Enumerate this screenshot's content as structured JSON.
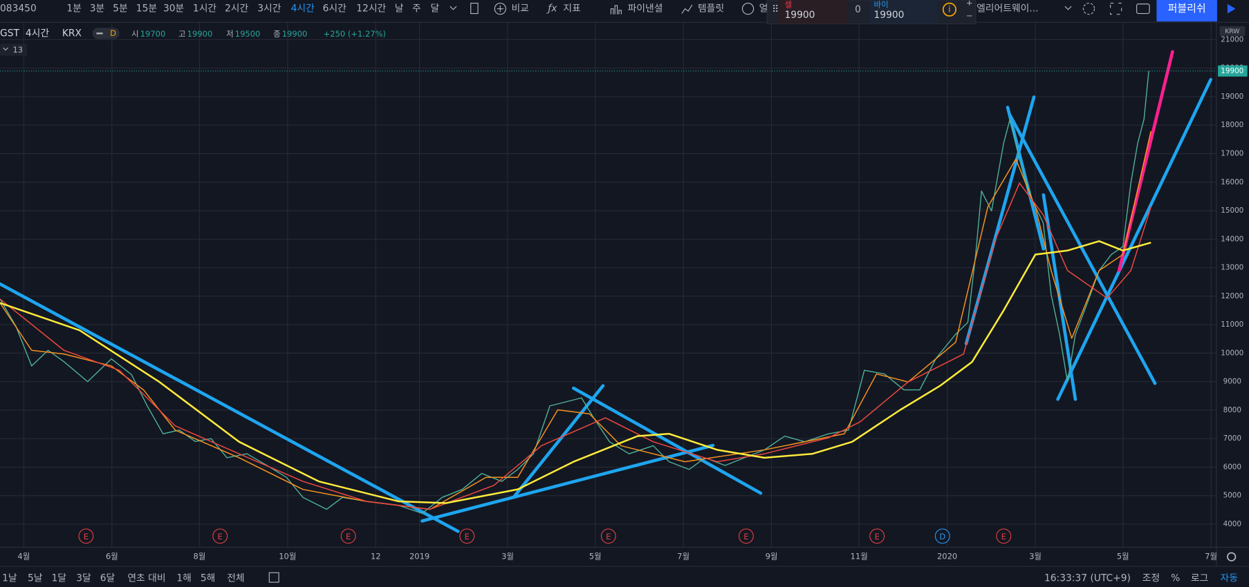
{
  "toolbar": {
    "symbol": "083450",
    "intervals": [
      "1분",
      "3분",
      "5분",
      "15분",
      "30분",
      "1시간",
      "2시간",
      "3시간",
      "4시간",
      "6시간",
      "12시간",
      "날",
      "주",
      "달"
    ],
    "selected": 8,
    "compare": "비교",
    "indicators": "지표",
    "financials": "파이낸셜",
    "templates": "템플릿",
    "alert": "얼",
    "sell_label": "셀",
    "sell_price": 19900,
    "spread": 0,
    "buy_label": "바이",
    "buy_price": 19900,
    "drawing_template": "엘리어트웨이...",
    "publish": "퍼블리쉬"
  },
  "legend": {
    "symbol": "GST",
    "interval": "4시간",
    "exchange": "KRX",
    "badge": "D",
    "open_label": "시",
    "open": 19700,
    "high_label": "고",
    "high": 19900,
    "low_label": "저",
    "low": 19500,
    "close_label": "종",
    "close": 19900,
    "change": "+250 (+1.27%)",
    "indicator_count": 13
  },
  "chart_data": {
    "type": "line",
    "currency": "KRW",
    "current_price": 19900,
    "xlim": [
      2018.205,
      2020.51
    ],
    "ylim": [
      3190,
      21610
    ],
    "xticks": [
      {
        "value": 2018.25,
        "label": "4월"
      },
      {
        "value": 2018.417,
        "label": "6월"
      },
      {
        "value": 2018.583,
        "label": "8월"
      },
      {
        "value": 2018.75,
        "label": "10월"
      },
      {
        "value": 2018.917,
        "label": "12"
      },
      2019,
      {
        "value": 2019.167,
        "label": "3월"
      },
      {
        "value": 2019.333,
        "label": "5월"
      },
      {
        "value": 2019.5,
        "label": "7월"
      },
      {
        "value": 2019.667,
        "label": "9월"
      },
      {
        "value": 2019.833,
        "label": "11월"
      },
      2020,
      {
        "value": 2020.167,
        "label": "3월"
      },
      {
        "value": 2020.333,
        "label": "5월"
      },
      {
        "value": 2020.5,
        "label": "7월"
      }
    ],
    "yticks": [
      4000,
      5000,
      6000,
      7000,
      8000,
      9000,
      10000,
      11000,
      12000,
      13000,
      14000,
      15000,
      16000,
      17000,
      18000,
      19000,
      20000,
      21000
    ],
    "grid": true,
    "series": [
      {
        "color": "#4fb39a",
        "width": 1.2,
        "x": [
          2018.205,
          2018.235,
          2018.265,
          2018.296,
          2018.326,
          2018.371,
          2018.416,
          2018.454,
          2018.484,
          2018.514,
          2018.545,
          2018.575,
          2018.605,
          2018.635,
          2018.673,
          2018.711,
          2018.748,
          2018.779,
          2018.824,
          2018.854,
          2018.899,
          2018.96,
          2019.005,
          2019.043,
          2019.081,
          2019.118,
          2019.156,
          2019.186,
          2019.216,
          2019.247,
          2019.277,
          2019.307,
          2019.33,
          2019.36,
          2019.397,
          2019.443,
          2019.473,
          2019.511,
          2019.541,
          2019.579,
          2019.616,
          2019.654,
          2019.692,
          2019.73,
          2019.775,
          2019.813,
          2019.843,
          2019.881,
          2019.918,
          2019.948,
          2019.979,
          2020.016,
          2020.039,
          2020.054,
          2020.065,
          2020.084,
          2020.107,
          2020.119,
          2020.137,
          2020.16,
          2020.182,
          2020.197,
          2020.213,
          2020.228,
          2020.243,
          2020.266,
          2020.288,
          2020.311,
          2020.333,
          2020.348,
          2020.361,
          2020.373,
          2020.382
        ],
        "values": [
          11900,
          10950,
          9550,
          10100,
          9700,
          9000,
          9800,
          9250,
          8150,
          7170,
          7300,
          6900,
          7000,
          6330,
          6470,
          6060,
          5640,
          4940,
          4520,
          4940,
          4800,
          4660,
          4380,
          4940,
          5220,
          5780,
          5500,
          5920,
          6470,
          8150,
          8290,
          8430,
          7730,
          6890,
          6470,
          6750,
          6190,
          5920,
          6330,
          6060,
          6330,
          6610,
          7090,
          6890,
          7170,
          7300,
          9400,
          9270,
          8710,
          8710,
          9820,
          10660,
          11080,
          13460,
          15690,
          14990,
          17370,
          18210,
          16810,
          15410,
          14570,
          12060,
          10660,
          8990,
          10660,
          11780,
          12900,
          13460,
          13740,
          15970,
          17370,
          18210,
          19900
        ]
      },
      {
        "color": "#f7931e",
        "width": 1.3,
        "x": [
          2018.205,
          2018.265,
          2018.326,
          2018.416,
          2018.477,
          2018.537,
          2018.658,
          2018.779,
          2018.899,
          2019.02,
          2019.126,
          2019.186,
          2019.262,
          2019.322,
          2019.382,
          2019.503,
          2019.654,
          2019.805,
          2019.866,
          2019.926,
          2020.016,
          2020.077,
          2020.13,
          2020.167,
          2020.197,
          2020.236,
          2020.288,
          2020.333,
          2020.386
        ],
        "values": [
          11760,
          10100,
          9970,
          9550,
          8710,
          7300,
          6330,
          5220,
          4800,
          4520,
          5640,
          5640,
          8010,
          7870,
          6750,
          6190,
          6610,
          7170,
          9270,
          8990,
          10380,
          15130,
          16810,
          15130,
          12900,
          10520,
          12900,
          13460,
          17790
        ]
      },
      {
        "color": "#f0483e",
        "width": 1.3,
        "x": [
          2018.205,
          2018.326,
          2018.431,
          2018.537,
          2018.658,
          2018.779,
          2018.899,
          2019.02,
          2019.141,
          2019.231,
          2019.352,
          2019.443,
          2019.564,
          2019.654,
          2019.775,
          2019.835,
          2019.926,
          2020.031,
          2020.092,
          2020.137,
          2020.182,
          2020.228,
          2020.303,
          2020.348,
          2020.386
        ],
        "values": [
          11900,
          10100,
          9400,
          7450,
          6470,
          5500,
          4800,
          4520,
          5360,
          6750,
          7730,
          6890,
          6190,
          6470,
          7030,
          7590,
          8990,
          9970,
          14020,
          15970,
          14850,
          12900,
          11930,
          12900,
          15130
        ]
      },
      {
        "color": "#ffeb3b",
        "width": 2.2,
        "x": [
          2018.205,
          2018.356,
          2018.507,
          2018.658,
          2018.809,
          2018.96,
          2019.05,
          2019.186,
          2019.292,
          2019.413,
          2019.473,
          2019.564,
          2019.654,
          2019.745,
          2019.82,
          2019.911,
          2019.986,
          2020.047,
          2020.107,
          2020.167,
          2020.228,
          2020.288,
          2020.333,
          2020.386
        ],
        "values": [
          11760,
          10800,
          8990,
          6890,
          5500,
          4800,
          4740,
          5220,
          6190,
          7090,
          7170,
          6610,
          6330,
          6470,
          6890,
          8010,
          8850,
          9690,
          11500,
          13460,
          13600,
          13930,
          13600,
          13880
        ]
      }
    ],
    "events": [
      {
        "label": "E",
        "x": 2018.368
      },
      {
        "label": "E",
        "x": 2018.622
      },
      {
        "label": "E",
        "x": 2018.865
      },
      {
        "label": "E",
        "x": 2019.09
      },
      {
        "label": "E",
        "x": 2019.358
      },
      {
        "label": "E",
        "x": 2019.619
      },
      {
        "label": "E",
        "x": 2019.867
      },
      {
        "label": "D",
        "x": 2019.991
      },
      {
        "label": "E",
        "x": 2020.107
      }
    ]
  },
  "bottom_bar": {
    "ranges": [
      "1날",
      "5날",
      "1달",
      "3달",
      "6달",
      "연초 대비",
      "1해",
      "5해",
      "전체"
    ],
    "clock": "16:33:37 (UTC+9)",
    "adjust": "조정",
    "percent": "%",
    "log": "로그",
    "auto": "자동"
  }
}
